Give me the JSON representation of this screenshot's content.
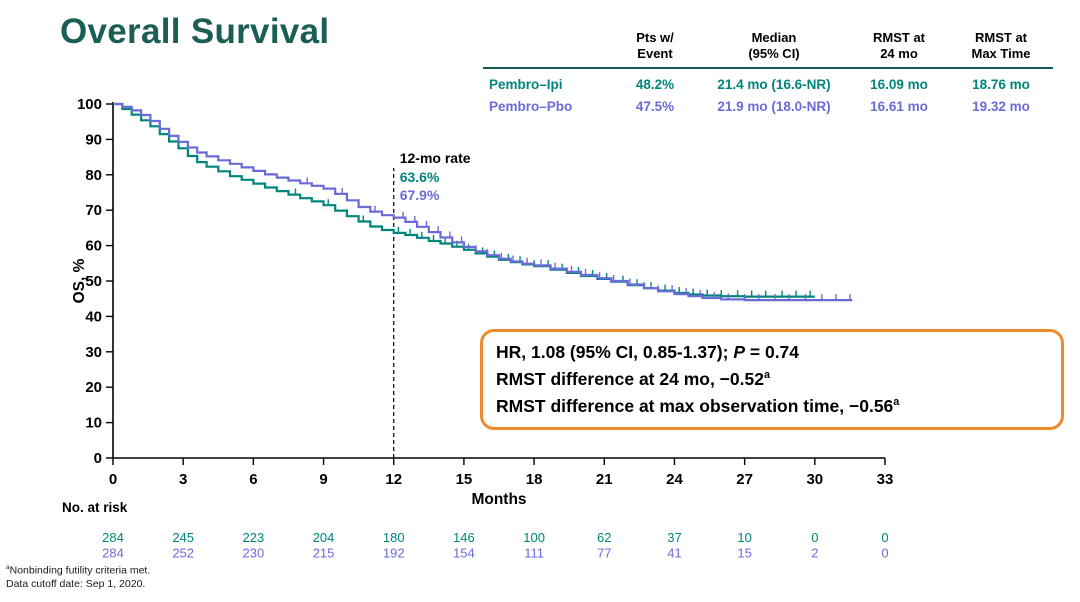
{
  "title": "Overall Survival",
  "colors": {
    "title": "#1B5E55",
    "teal": "#00857C",
    "purple": "#6B6BD8",
    "table_rule": "#115E54",
    "box_border": "#EF8A2C",
    "axis": "#000000"
  },
  "summary_table": {
    "headers": [
      "Pts w/\nEvent",
      "Median\n(95% CI)",
      "RMST at\n24 mo",
      "RMST at\nMax Time"
    ],
    "rows": [
      {
        "label": "Pembro–Ipi",
        "event": "48.2%",
        "median": "21.4 mo (16.6-NR)",
        "rmst24": "16.09 mo",
        "rmstmax": "18.76 mo"
      },
      {
        "label": "Pembro–Pbo",
        "event": "47.5%",
        "median": "21.9 mo (18.0-NR)",
        "rmst24": "16.61 mo",
        "rmstmax": "19.32 mo"
      }
    ]
  },
  "hr_box": {
    "line1_pre": "HR, 1.08 (95% CI, 0.85-1.37); ",
    "line1_italic": "P",
    "line1_post": " = 0.74",
    "line2": "RMST difference at 24 mo, −0.52",
    "line2_sup": "a",
    "line3": "RMST difference at max observation time, −0.56",
    "line3_sup": "a"
  },
  "footnotes": {
    "f1_sup": "a",
    "f1": "Nonbinding futility criteria met.",
    "f2": "Data cutoff date: Sep 1, 2020."
  },
  "chart_data": {
    "type": "line",
    "subtype": "kaplan-meier",
    "title": "Overall Survival",
    "xlabel": "Months",
    "ylabel": "OS, %",
    "xlim": [
      0,
      33
    ],
    "ylim": [
      0,
      100
    ],
    "xticks": [
      0,
      3,
      6,
      9,
      12,
      15,
      18,
      21,
      24,
      27,
      30,
      33
    ],
    "yticks": [
      0,
      10,
      20,
      30,
      40,
      50,
      60,
      70,
      80,
      90,
      100
    ],
    "grid": false,
    "reference_line": {
      "x": 12,
      "label": "12-mo rate",
      "values": [
        {
          "text": "63.6%",
          "series": "Pembro–Ipi"
        },
        {
          "text": "67.9%",
          "series": "Pembro–Pbo"
        }
      ]
    },
    "series": [
      {
        "name": "Pembro–Ipi",
        "color": "#00857C",
        "rate_12mo": 63.6,
        "points": [
          [
            0,
            100
          ],
          [
            0.4,
            98.6
          ],
          [
            0.8,
            97
          ],
          [
            1.2,
            95.4
          ],
          [
            1.6,
            93.7
          ],
          [
            2,
            91.5
          ],
          [
            2.4,
            89.4
          ],
          [
            2.8,
            87.5
          ],
          [
            3.2,
            85.3
          ],
          [
            3.6,
            83.6
          ],
          [
            4,
            82.3
          ],
          [
            4.5,
            81
          ],
          [
            5,
            79.6
          ],
          [
            5.5,
            78.6
          ],
          [
            6,
            77.5
          ],
          [
            6.5,
            76.4
          ],
          [
            7,
            75.4
          ],
          [
            7.5,
            74.4
          ],
          [
            8,
            73.4
          ],
          [
            8.5,
            72.5
          ],
          [
            9,
            71.4
          ],
          [
            9.5,
            69.9
          ],
          [
            10,
            68.3
          ],
          [
            10.5,
            66.8
          ],
          [
            11,
            65.4
          ],
          [
            11.5,
            64.4
          ],
          [
            12,
            63.6
          ],
          [
            12.5,
            63
          ],
          [
            13,
            62.2
          ],
          [
            13.5,
            61.3
          ],
          [
            14,
            60.6
          ],
          [
            14.5,
            59.7
          ],
          [
            15,
            58.8
          ],
          [
            15.5,
            57.8
          ],
          [
            16,
            56.9
          ],
          [
            16.5,
            56
          ],
          [
            17,
            55.3
          ],
          [
            17.5,
            54.7
          ],
          [
            18,
            54.2
          ],
          [
            18.7,
            53.2
          ],
          [
            19.4,
            52.3
          ],
          [
            20,
            51.4
          ],
          [
            20.7,
            50.6
          ],
          [
            21.3,
            49.8
          ],
          [
            22,
            48.8
          ],
          [
            22.7,
            48
          ],
          [
            23.3,
            47.3
          ],
          [
            24,
            46.6
          ],
          [
            24.6,
            46.2
          ],
          [
            25.2,
            45.9
          ],
          [
            26,
            45.7
          ],
          [
            27,
            45.6
          ],
          [
            28,
            45.6
          ],
          [
            29,
            45.6
          ],
          [
            30,
            45.6
          ]
        ],
        "censors": [
          7.8,
          9.2,
          10.7,
          12.2,
          12.7,
          13.2,
          13.7,
          14.2,
          14.7,
          15.2,
          15.8,
          16.3,
          16.9,
          17.4,
          18,
          18.6,
          19.2,
          19.9,
          20.5,
          21.1,
          21.8,
          22.4,
          23,
          23.6,
          24.2,
          24.8,
          25.4,
          26,
          26.7,
          27.3,
          27.9,
          28.6,
          29.2,
          29.8
        ]
      },
      {
        "name": "Pembro–Pbo",
        "color": "#6B6BD8",
        "rate_12mo": 67.9,
        "points": [
          [
            0,
            100
          ],
          [
            0.4,
            99.2
          ],
          [
            0.8,
            98.2
          ],
          [
            1.2,
            96.9
          ],
          [
            1.6,
            95.2
          ],
          [
            2,
            93
          ],
          [
            2.4,
            91
          ],
          [
            2.8,
            89.3
          ],
          [
            3.2,
            87.7
          ],
          [
            3.6,
            86.3
          ],
          [
            4,
            85.2
          ],
          [
            4.5,
            84.1
          ],
          [
            5,
            83.1
          ],
          [
            5.5,
            82.1
          ],
          [
            6,
            81.1
          ],
          [
            6.5,
            80.1
          ],
          [
            7,
            79.2
          ],
          [
            7.5,
            78.4
          ],
          [
            8,
            77.6
          ],
          [
            8.5,
            76.9
          ],
          [
            9,
            76.1
          ],
          [
            9.5,
            74.6
          ],
          [
            10,
            72.8
          ],
          [
            10.5,
            70.9
          ],
          [
            11,
            69.6
          ],
          [
            11.5,
            68.6
          ],
          [
            12,
            67.9
          ],
          [
            12.5,
            66.7
          ],
          [
            13,
            65.3
          ],
          [
            13.5,
            63.8
          ],
          [
            14,
            62.3
          ],
          [
            14.5,
            60.9
          ],
          [
            15,
            59.6
          ],
          [
            15.5,
            58.4
          ],
          [
            16,
            57.3
          ],
          [
            16.5,
            56.3
          ],
          [
            17,
            55.5
          ],
          [
            17.5,
            54.9
          ],
          [
            18,
            54.4
          ],
          [
            18.7,
            53.5
          ],
          [
            19.4,
            52.6
          ],
          [
            20,
            51.7
          ],
          [
            20.7,
            50.8
          ],
          [
            21.3,
            50
          ],
          [
            22,
            49
          ],
          [
            22.7,
            48
          ],
          [
            23.3,
            47.1
          ],
          [
            24,
            46.3
          ],
          [
            24.6,
            45.7
          ],
          [
            25.2,
            45.2
          ],
          [
            26,
            44.8
          ],
          [
            27,
            44.6
          ],
          [
            28,
            44.6
          ],
          [
            29,
            44.6
          ],
          [
            30,
            44.6
          ],
          [
            31.6,
            44.6
          ]
        ],
        "censors": [
          8.3,
          9.8,
          11.2,
          12.4,
          12.9,
          13.4,
          13.9,
          14.4,
          14.9,
          15.5,
          16,
          16.6,
          17.1,
          17.7,
          18.3,
          18.9,
          19.6,
          20.2,
          20.8,
          21.4,
          22.1,
          22.7,
          23.3,
          23.9,
          24.5,
          25.1,
          25.7,
          26.3,
          27,
          27.6,
          28.3,
          28.9,
          29.6,
          30.3,
          30.9,
          31.5
        ]
      }
    ],
    "risk_table": {
      "title": "No. at risk",
      "x": [
        0,
        3,
        6,
        9,
        12,
        15,
        18,
        21,
        24,
        27,
        30,
        33
      ],
      "rows": [
        {
          "name": "Pembro–Ipi",
          "color": "#00857C",
          "values": [
            284,
            245,
            223,
            204,
            180,
            146,
            100,
            62,
            37,
            10,
            0,
            0
          ]
        },
        {
          "name": "Pembro–Pbo",
          "color": "#6B6BD8",
          "values": [
            284,
            252,
            230,
            215,
            192,
            154,
            111,
            77,
            41,
            15,
            2,
            0
          ]
        }
      ]
    }
  }
}
